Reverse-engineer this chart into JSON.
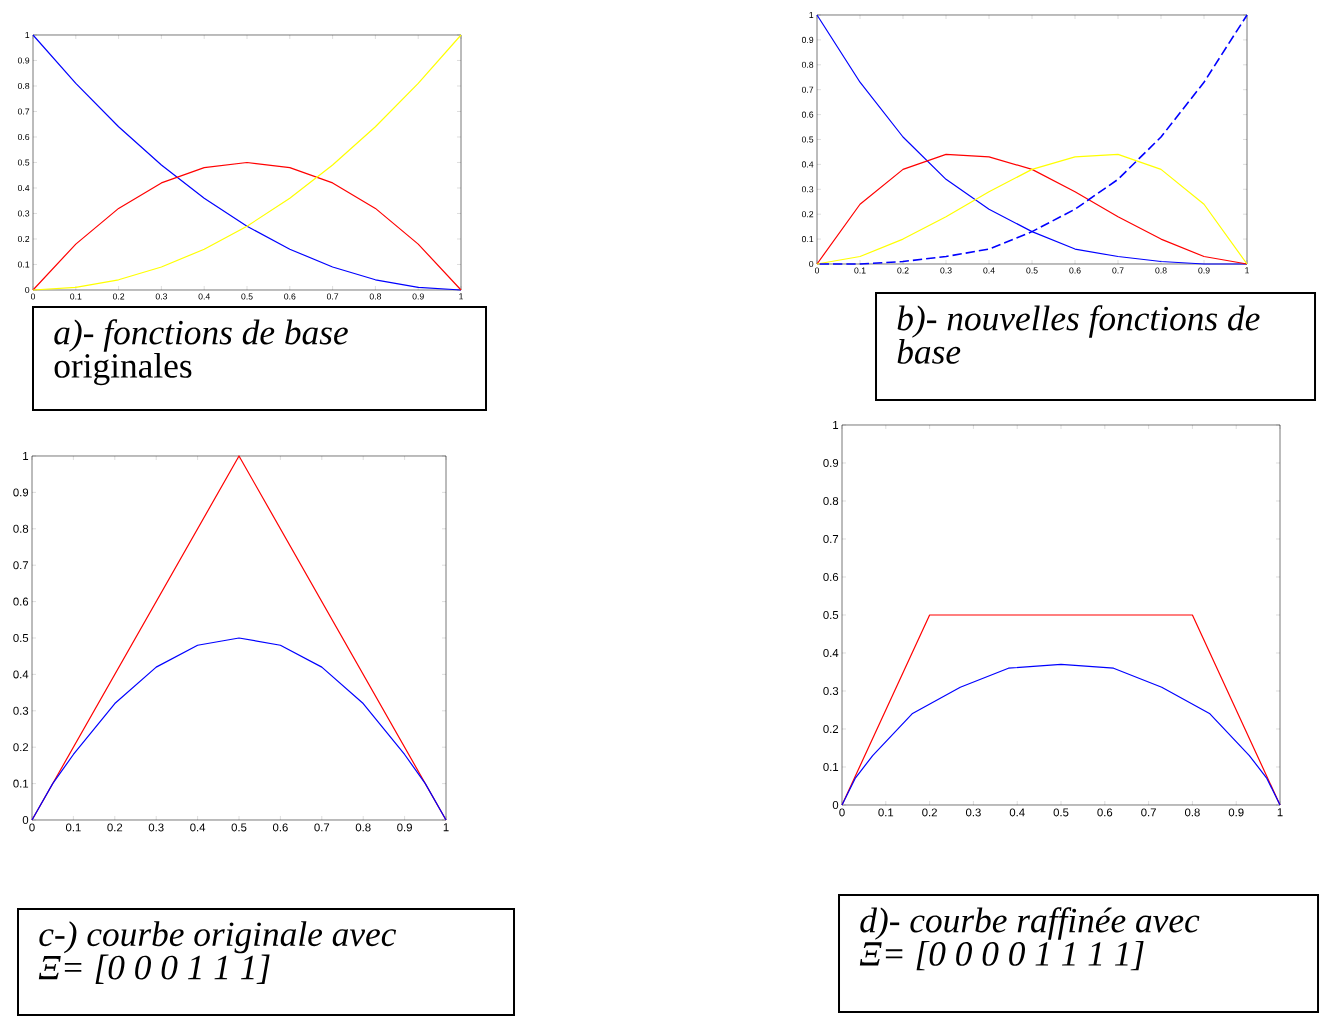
{
  "chart_data": [
    {
      "type": "line",
      "annotations": [
        "*a)- fonctions de base* originales"
      ],
      "xlim": [
        0,
        1
      ],
      "ylim": [
        0,
        1
      ],
      "xticks": [
        0,
        0.1,
        0.2,
        0.3,
        0.4,
        0.5,
        0.6,
        0.7,
        0.8,
        0.9,
        1
      ],
      "yticks": [
        0,
        0.1,
        0.2,
        0.3,
        0.4,
        0.5,
        0.6,
        0.7,
        0.8,
        0.9,
        1
      ],
      "grid": false,
      "x": [
        0,
        0.1,
        0.2,
        0.3,
        0.4,
        0.5,
        0.6,
        0.7,
        0.8,
        0.9,
        1
      ],
      "series": [
        {
          "color": "#0000ff",
          "values": [
            1,
            0.81,
            0.64,
            0.49,
            0.36,
            0.25,
            0.16,
            0.09,
            0.04,
            0.01,
            0
          ]
        },
        {
          "color": "#ff0000",
          "values": [
            0,
            0.18,
            0.32,
            0.42,
            0.48,
            0.5,
            0.48,
            0.42,
            0.32,
            0.18,
            0
          ]
        },
        {
          "color": "#ffff00",
          "values": [
            0,
            0.01,
            0.04,
            0.09,
            0.16,
            0.25,
            0.36,
            0.49,
            0.64,
            0.81,
            1
          ]
        }
      ]
    },
    {
      "type": "line",
      "annotations": [
        "*b)- nouvelles fonctions de base*"
      ],
      "xlim": [
        0,
        1
      ],
      "ylim": [
        0,
        1
      ],
      "xticks": [
        0,
        0.1,
        0.2,
        0.3,
        0.4,
        0.5,
        0.6,
        0.7,
        0.8,
        0.9,
        1
      ],
      "yticks": [
        0,
        0.1,
        0.2,
        0.3,
        0.4,
        0.5,
        0.6,
        0.7,
        0.8,
        0.9,
        1
      ],
      "grid": false,
      "x": [
        0,
        0.1,
        0.2,
        0.3,
        0.4,
        0.5,
        0.6,
        0.7,
        0.8,
        0.9,
        1
      ],
      "series": [
        {
          "color": "#0000ff",
          "line_style": "solid",
          "values": [
            1,
            0.73,
            0.51,
            0.34,
            0.22,
            0.13,
            0.06,
            0.03,
            0.01,
            0,
            0
          ]
        },
        {
          "color": "#ff0000",
          "line_style": "solid",
          "values": [
            0,
            0.24,
            0.38,
            0.44,
            0.43,
            0.38,
            0.29,
            0.19,
            0.1,
            0.03,
            0
          ]
        },
        {
          "color": "#ffff00",
          "line_style": "solid",
          "values": [
            0,
            0.03,
            0.1,
            0.19,
            0.29,
            0.38,
            0.43,
            0.44,
            0.38,
            0.24,
            0
          ]
        },
        {
          "color": "#0000ff",
          "line_style": "dashed",
          "values": [
            0,
            0,
            0.01,
            0.03,
            0.06,
            0.13,
            0.22,
            0.34,
            0.51,
            0.73,
            1
          ]
        }
      ]
    },
    {
      "type": "line",
      "annotations": [
        "*c-) courbe originale avec Ξ= [0 0 0 1 1 1]*"
      ],
      "xlim": [
        0,
        1
      ],
      "ylim": [
        0,
        1
      ],
      "xticks": [
        0,
        0.1,
        0.2,
        0.3,
        0.4,
        0.5,
        0.6,
        0.7,
        0.8,
        0.9,
        1
      ],
      "yticks": [
        0,
        0.1,
        0.2,
        0.3,
        0.4,
        0.5,
        0.6,
        0.7,
        0.8,
        0.9,
        1
      ],
      "grid": false,
      "series": [
        {
          "color": "#ff0000",
          "x": [
            0,
            0.5,
            1
          ],
          "values": [
            0,
            1,
            0
          ]
        },
        {
          "color": "#0000ff",
          "x": [
            0,
            0.05,
            0.1,
            0.2,
            0.3,
            0.4,
            0.5,
            0.6,
            0.7,
            0.8,
            0.9,
            0.95,
            1
          ],
          "values": [
            0,
            0.1,
            0.18,
            0.32,
            0.42,
            0.48,
            0.5,
            0.48,
            0.42,
            0.32,
            0.18,
            0.1,
            0
          ]
        }
      ]
    },
    {
      "type": "line",
      "annotations": [
        "*d)- courbe raffinée avec Ξ= [0 0 0 0 1 1 1 1]*"
      ],
      "xlim": [
        0,
        1
      ],
      "ylim": [
        0,
        1
      ],
      "xticks": [
        0,
        0.1,
        0.2,
        0.3,
        0.4,
        0.5,
        0.6,
        0.7,
        0.8,
        0.9,
        1
      ],
      "yticks": [
        0,
        0.1,
        0.2,
        0.3,
        0.4,
        0.5,
        0.6,
        0.7,
        0.8,
        0.9,
        1
      ],
      "grid": false,
      "series": [
        {
          "color": "#ff0000",
          "x": [
            0,
            0.2,
            0.8,
            1
          ],
          "values": [
            0,
            0.5,
            0.5,
            0
          ]
        },
        {
          "color": "#0000ff",
          "x": [
            0,
            0.03,
            0.07,
            0.16,
            0.27,
            0.38,
            0.5,
            0.62,
            0.73,
            0.84,
            0.93,
            0.97,
            1
          ],
          "values": [
            0,
            0.07,
            0.13,
            0.24,
            0.31,
            0.36,
            0.37,
            0.36,
            0.31,
            0.24,
            0.13,
            0.07,
            0
          ]
        }
      ]
    }
  ]
}
